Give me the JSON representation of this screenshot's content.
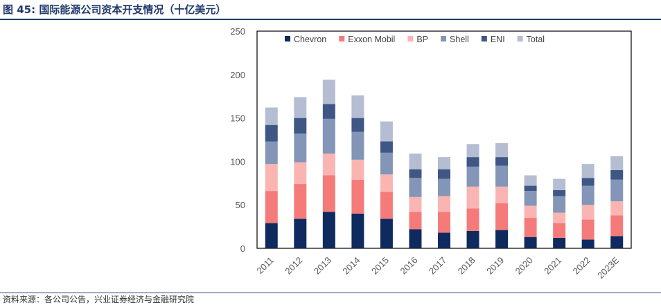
{
  "figure": {
    "title": "图 45: 国际能源公司资本开支情况（十亿美元）",
    "source": "资料来源：各公司公告，兴业证券经济与金融研究院"
  },
  "chart_data": {
    "type": "bar",
    "stacked": true,
    "title": "",
    "xlabel": "",
    "ylabel": "",
    "ylim": [
      0,
      250
    ],
    "yticks": [
      0,
      50,
      100,
      150,
      200,
      250
    ],
    "legend_position": "top",
    "grid": false,
    "categories": [
      "2011",
      "2012",
      "2013",
      "2014",
      "2015",
      "2016",
      "2017",
      "2018",
      "2019",
      "2020",
      "2021",
      "2022",
      "2023E"
    ],
    "series": [
      {
        "name": "Chevron",
        "color": "#0f2a5e",
        "values": [
          29,
          34,
          42,
          40,
          34,
          22,
          18,
          20,
          21,
          13,
          12,
          10,
          14
        ]
      },
      {
        "name": "Exxon Mobil",
        "color": "#f57b7b",
        "values": [
          37,
          40,
          42,
          39,
          31,
          20,
          24,
          26,
          31,
          22,
          17,
          23,
          24
        ]
      },
      {
        "name": "BP",
        "color": "#fab5b3",
        "values": [
          31,
          25,
          25,
          23,
          20,
          17,
          18,
          25,
          19,
          14,
          12,
          17,
          16
        ]
      },
      {
        "name": "Shell",
        "color": "#8496b7",
        "values": [
          26,
          33,
          40,
          32,
          25,
          22,
          20,
          23,
          24,
          17,
          19,
          22,
          25
        ]
      },
      {
        "name": "ENI",
        "color": "#3f5784",
        "values": [
          19,
          18,
          17,
          16,
          13,
          10,
          11,
          11,
          10,
          6,
          7,
          9,
          11
        ]
      },
      {
        "name": "Total",
        "color": "#b4bdd2",
        "values": [
          20,
          24,
          28,
          26,
          23,
          18,
          14,
          15,
          16,
          12,
          13,
          16,
          16
        ]
      }
    ]
  }
}
